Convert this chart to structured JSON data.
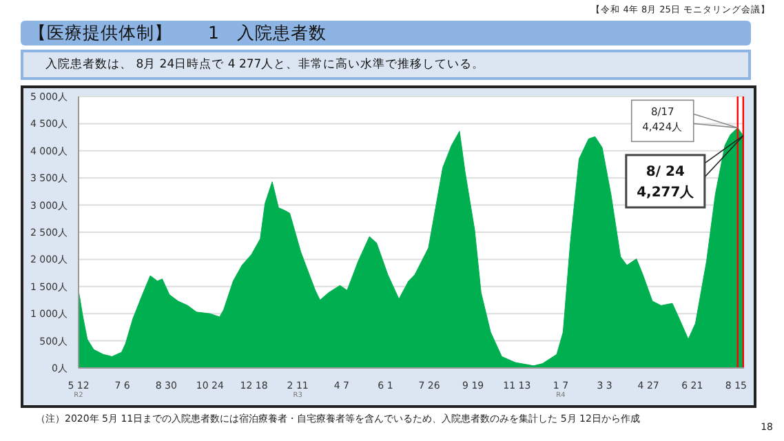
{
  "chart_data": {
    "type": "area",
    "title": "【医療提供体制】　　1　入院患者数",
    "subtitle": "入院患者数は、 8月 24日時点で 4 277人と、非常に高い水準で推移している。",
    "annotations": [
      "【令和 4年 8月 25日 モニタリング会議】",
      "（注）2020年 5月 11日までの入院患者数には宿泊療養者・自宅療養者等を含んでいるため、入院患者数のみを集計した 5月 12日から作成",
      "18",
      {
        "text": "8/17\n4,424人",
        "x": "2022-08-17",
        "y": 4424
      },
      {
        "text": "8/ 24\n4,277人",
        "x": "2022-08-24",
        "y": 4277
      }
    ],
    "x": [
      "2020-05-12",
      "2020-05-17",
      "2020-05-23",
      "2020-05-31",
      "2020-06-12",
      "2020-06-23",
      "2020-07-05",
      "2020-07-10",
      "2020-07-19",
      "2020-07-30",
      "2020-08-10",
      "2020-08-19",
      "2020-08-25",
      "2020-09-03",
      "2020-09-14",
      "2020-09-26",
      "2020-10-07",
      "2020-10-24",
      "2020-11-05",
      "2020-11-10",
      "2020-11-22",
      "2020-12-03",
      "2020-12-15",
      "2020-12-26",
      "2021-01-01",
      "2021-01-10",
      "2021-01-18",
      "2021-01-26",
      "2021-02-01",
      "2021-02-15",
      "2021-03-05",
      "2021-03-11",
      "2021-03-22",
      "2021-04-05",
      "2021-04-14",
      "2021-04-28",
      "2021-05-12",
      "2021-05-21",
      "2021-06-04",
      "2021-06-18",
      "2021-06-30",
      "2021-07-08",
      "2021-07-25",
      "2021-08-12",
      "2021-08-23",
      "2021-09-02",
      "2021-09-09",
      "2021-09-21",
      "2021-09-29",
      "2021-10-11",
      "2021-10-25",
      "2021-11-11",
      "2021-12-04",
      "2021-12-15",
      "2022-01-02",
      "2022-01-10",
      "2022-01-19",
      "2022-01-30",
      "2022-02-11",
      "2022-02-19",
      "2022-02-28",
      "2022-03-11",
      "2022-03-23",
      "2022-03-31",
      "2022-04-12",
      "2022-04-20",
      "2022-05-02",
      "2022-05-13",
      "2022-05-27",
      "2022-06-05",
      "2022-06-16",
      "2022-06-25",
      "2022-07-09",
      "2022-07-20",
      "2022-08-01",
      "2022-08-08",
      "2022-08-17",
      "2022-08-24"
    ],
    "series": [
      {
        "color": "#00b050",
        "values": [
          1430,
          980,
          530,
          340,
          250,
          210,
          290,
          450,
          900,
          1310,
          1700,
          1600,
          1640,
          1350,
          1230,
          1150,
          1030,
          1000,
          940,
          1070,
          1600,
          1890,
          2090,
          2380,
          3030,
          3430,
          2950,
          2900,
          2850,
          2130,
          1430,
          1250,
          1390,
          1520,
          1430,
          1970,
          2420,
          2300,
          1720,
          1270,
          1600,
          1720,
          2210,
          3690,
          4100,
          4360,
          3610,
          2540,
          1390,
          660,
          210,
          100,
          40,
          80,
          250,
          660,
          2300,
          3850,
          4220,
          4260,
          4060,
          3200,
          2050,
          1890,
          2010,
          1720,
          1230,
          1150,
          1190,
          900,
          530,
          820,
          1970,
          3200,
          4100,
          4300,
          4424,
          4277
        ]
      }
    ],
    "xlim": [
      "2020-05-12",
      "2022-08-25"
    ],
    "xticks": [
      {
        "value": "2020-05-12",
        "label": "5 12\nR2"
      },
      {
        "value": "2020-07-06",
        "label": "7 6"
      },
      {
        "value": "2020-08-30",
        "label": "8 30"
      },
      {
        "value": "2020-10-24",
        "label": "10 24"
      },
      {
        "value": "2020-12-18",
        "label": "12 18"
      },
      {
        "value": "2021-02-11",
        "label": "2 11\nR3"
      },
      {
        "value": "2021-04-07",
        "label": "4 7"
      },
      {
        "value": "2021-06-01",
        "label": "6 1"
      },
      {
        "value": "2021-07-26",
        "label": "7 26"
      },
      {
        "value": "2021-09-19",
        "label": "9 19"
      },
      {
        "value": "2021-11-13",
        "label": "11 13"
      },
      {
        "value": "2022-01-07",
        "label": "1 7\nR4"
      },
      {
        "value": "2022-03-03",
        "label": "3 3"
      },
      {
        "value": "2022-04-27",
        "label": "4 27"
      },
      {
        "value": "2022-06-21",
        "label": "6 21"
      },
      {
        "value": "2022-08-15",
        "label": "8 15"
      }
    ],
    "ylim": [
      0,
      5000
    ],
    "yticks": [
      {
        "value": 0,
        "label": "0人"
      },
      {
        "value": 500,
        "label": "500人"
      },
      {
        "value": 1000,
        "label": "1 000人"
      },
      {
        "value": 1500,
        "label": "1 500人"
      },
      {
        "value": 2000,
        "label": "2 000人"
      },
      {
        "value": 2500,
        "label": "2 500人"
      },
      {
        "value": 3000,
        "label": "3 000人"
      },
      {
        "value": 3500,
        "label": "3 500人"
      },
      {
        "value": 4000,
        "label": "4 000人"
      },
      {
        "value": 4500,
        "label": "4 500人"
      },
      {
        "value": 5000,
        "label": "5 000人"
      }
    ],
    "ref_lines": [
      {
        "axis": "x",
        "value": "2022-08-17",
        "color": "#ff0000"
      },
      {
        "axis": "x",
        "value": "2022-08-24",
        "color": "#ff0000"
      }
    ],
    "grid": "y"
  }
}
